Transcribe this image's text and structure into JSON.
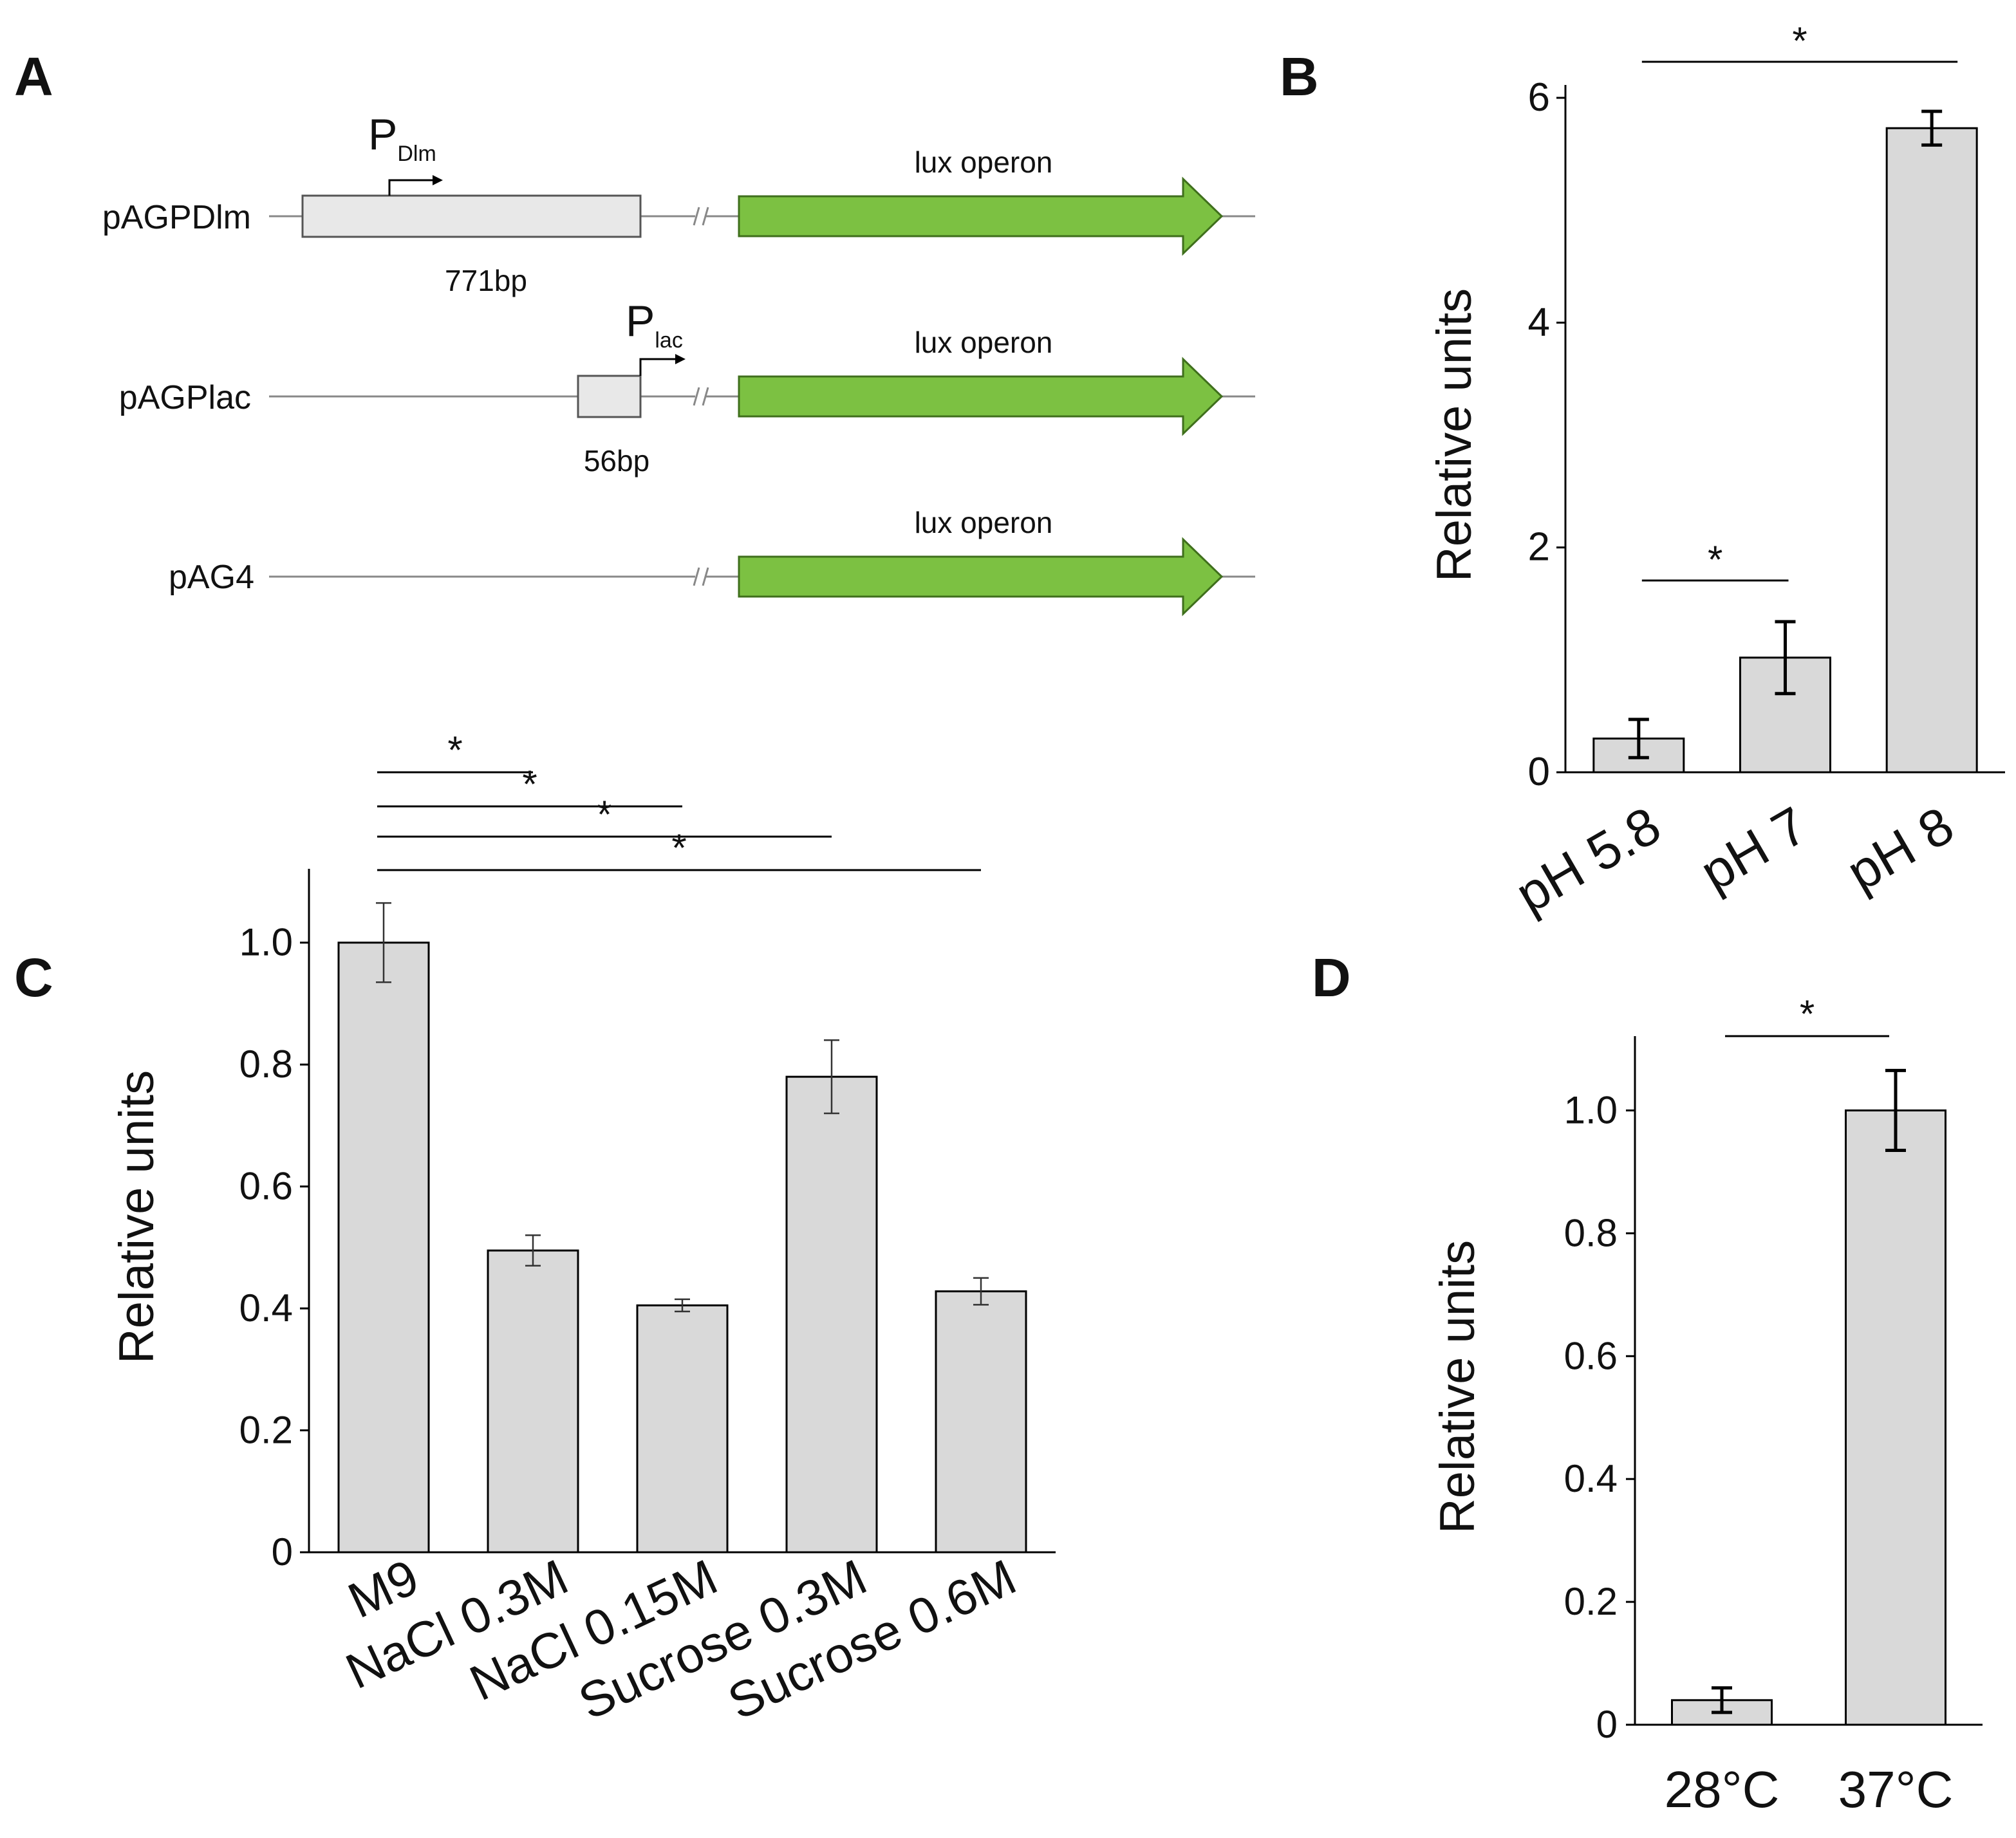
{
  "panels": {
    "a": "A",
    "b": "B",
    "c": "C",
    "d": "D"
  },
  "diagram": {
    "constructs": [
      {
        "name": "pAGPDlm",
        "promoter_main": "P",
        "promoter_sub": "Dlm",
        "promoter_size": "771bp",
        "gene": "lux operon"
      },
      {
        "name": "pAGPlac",
        "promoter_main": "P",
        "promoter_sub": "lac",
        "promoter_size": "56bp",
        "gene": "lux operon"
      },
      {
        "name": "pAG4",
        "gene": "lux operon"
      }
    ],
    "colors": {
      "gene_fill": "#7cc142",
      "promoter_fill": "#e8e8e8"
    }
  },
  "chart_data": [
    {
      "panel": "B",
      "type": "bar",
      "categories": [
        "pH 5.8",
        "pH 7",
        "pH 8"
      ],
      "values": [
        0.3,
        1.02,
        5.73
      ],
      "errors": [
        0.17,
        0.32,
        0.15
      ],
      "ylabel": "Relative units",
      "yticks": [
        "0",
        "2",
        "4",
        "6"
      ],
      "ylim": [
        0,
        6
      ],
      "significance": [
        {
          "from": 0,
          "to": 1,
          "label": "*"
        },
        {
          "from": 0,
          "to": 2,
          "label": "*"
        }
      ],
      "bar_color": "#d9d9d9"
    },
    {
      "panel": "C",
      "type": "bar",
      "categories": [
        "M9",
        "NaCl 0.3M",
        "NaCl 0.15M",
        "Sucrose 0.3M",
        "Sucrose 0.6M"
      ],
      "values": [
        1.0,
        0.495,
        0.405,
        0.78,
        0.428
      ],
      "errors": [
        0.065,
        0.025,
        0.01,
        0.06,
        0.022
      ],
      "ylabel": "Relative units",
      "yticks": [
        "0",
        "0.2",
        "0.4",
        "0.6",
        "0.8",
        "1.0"
      ],
      "ylim": [
        0,
        1.1
      ],
      "significance": [
        {
          "from": 0,
          "to": 1,
          "label": "*"
        },
        {
          "from": 0,
          "to": 2,
          "label": "*"
        },
        {
          "from": 0,
          "to": 3,
          "label": "*"
        },
        {
          "from": 0,
          "to": 4,
          "label": "*"
        }
      ],
      "bar_color": "#d9d9d9"
    },
    {
      "panel": "D",
      "type": "bar",
      "categories": [
        "28°C",
        "37°C"
      ],
      "values": [
        0.04,
        1.0
      ],
      "errors": [
        0.02,
        0.065
      ],
      "ylabel": "Relative units",
      "yticks": [
        "0",
        "0.2",
        "0.4",
        "0.6",
        "0.8",
        "1.0"
      ],
      "ylim": [
        0,
        1.1
      ],
      "significance": [
        {
          "from": 0,
          "to": 1,
          "label": "*"
        }
      ],
      "bar_color": "#d9d9d9"
    }
  ]
}
